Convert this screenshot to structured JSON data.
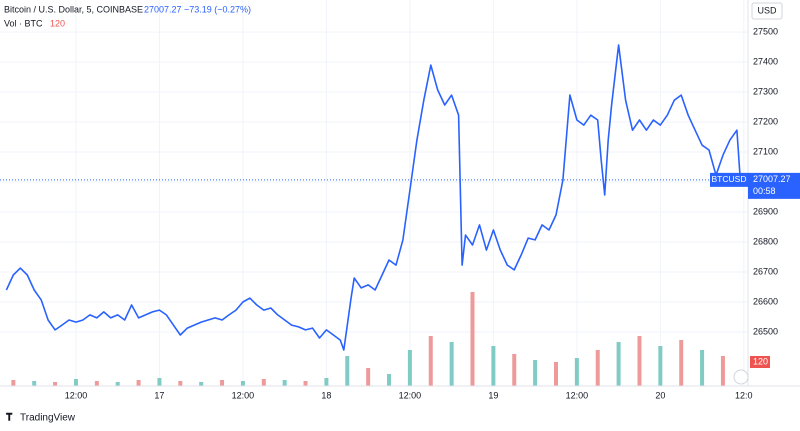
{
  "chart_data": {
    "type": "line",
    "title": "Bitcoin / U.S. Dollar, 5, COINBASE",
    "change": "−73.19 (−0.27%)",
    "volume_title": "Vol · BTC",
    "volume_last": 120,
    "currency": "USD",
    "symbol": "BTCUSD",
    "countdown": "00:58",
    "brand": "TradingView",
    "last_price": 27007.27,
    "color": "#2962ff",
    "grid": true,
    "x": [
      2,
      3,
      4,
      5,
      6,
      7,
      8,
      9,
      10,
      11,
      12,
      13,
      14,
      15,
      16,
      17,
      18,
      19,
      20,
      21,
      22,
      23,
      24,
      25,
      26,
      27,
      28,
      29,
      30,
      31,
      32,
      33,
      34,
      35,
      36,
      37,
      38,
      39,
      40,
      41,
      42,
      43,
      44,
      45,
      46,
      47,
      48,
      49,
      50,
      50.5,
      51,
      51.5,
      52,
      53,
      54,
      55,
      56,
      57,
      58,
      59,
      60,
      61,
      62,
      63,
      64,
      65,
      66,
      67,
      67.5,
      68,
      69,
      70,
      71,
      72,
      73,
      74,
      75,
      76,
      77,
      78,
      79,
      80,
      81,
      82,
      83,
      84,
      85,
      86,
      87,
      87.5,
      88,
      88.5,
      89,
      90,
      91,
      92,
      93,
      94,
      95,
      96,
      97,
      98,
      99,
      100,
      101,
      102,
      103,
      104,
      105,
      106,
      107,
      107.5
    ],
    "values": [
      26640,
      26690,
      26713,
      26690,
      26640,
      26607,
      26540,
      26507,
      26523,
      26540,
      26533,
      26540,
      26557,
      26547,
      26567,
      26547,
      26557,
      26540,
      26590,
      26547,
      26557,
      26567,
      26573,
      26557,
      26523,
      26490,
      26513,
      26523,
      26533,
      26540,
      26547,
      26540,
      26557,
      26573,
      26600,
      26613,
      26590,
      26573,
      26580,
      26557,
      26540,
      26523,
      26517,
      26507,
      26513,
      26480,
      26507,
      26490,
      26473,
      26440,
      26523,
      26607,
      26680,
      26647,
      26657,
      26640,
      26690,
      26740,
      26723,
      26807,
      26973,
      27140,
      27273,
      27390,
      27307,
      27257,
      27290,
      27223,
      26723,
      26823,
      26790,
      26857,
      26773,
      26840,
      26773,
      26723,
      26707,
      26757,
      26813,
      26807,
      26857,
      26840,
      26890,
      27007,
      27290,
      27207,
      27190,
      27223,
      27207,
      27073,
      26957,
      27140,
      27257,
      27457,
      27273,
      27173,
      27207,
      27173,
      27207,
      27190,
      27223,
      27273,
      27290,
      27223,
      27173,
      27123,
      27107,
      27023,
      27090,
      27140,
      27173,
      27007
    ],
    "xlim": [
      1.8,
      108.6
    ],
    "ylim": [
      26320,
      27607
    ],
    "yticks": [
      26500,
      26600,
      26700,
      26800,
      26900,
      27000,
      27100,
      27200,
      27300,
      27400,
      27500
    ],
    "xticks": [
      {
        "value": 12,
        "label": "12:00"
      },
      {
        "value": 24,
        "label": "17"
      },
      {
        "value": 36,
        "label": "12:00"
      },
      {
        "value": 48,
        "label": "18"
      },
      {
        "value": 60,
        "label": "12:00"
      },
      {
        "value": 72,
        "label": "19"
      },
      {
        "value": 84,
        "label": "12:00"
      },
      {
        "value": 96,
        "label": "20"
      },
      {
        "value": 108,
        "label": "12:0"
      }
    ],
    "volume": {
      "x": [
        3,
        6,
        9,
        12,
        15,
        18,
        21,
        24,
        27,
        30,
        33,
        36,
        39,
        42,
        45,
        48,
        51,
        54,
        57,
        60,
        63,
        66,
        69,
        72,
        75,
        78,
        81,
        84,
        87,
        90,
        93,
        96,
        99,
        102,
        105
      ],
      "values": [
        30,
        25,
        20,
        35,
        25,
        20,
        30,
        40,
        25,
        20,
        30,
        25,
        35,
        30,
        25,
        40,
        150,
        90,
        60,
        180,
        250,
        220,
        470,
        200,
        160,
        130,
        120,
        140,
        180,
        220,
        250,
        200,
        230,
        180,
        150
      ],
      "colors": [
        "#ef9a9a",
        "#80cbc4",
        "#ef9a9a",
        "#80cbc4",
        "#ef9a9a",
        "#80cbc4",
        "#ef9a9a",
        "#80cbc4",
        "#ef9a9a",
        "#80cbc4",
        "#ef9a9a",
        "#80cbc4",
        "#ef9a9a",
        "#80cbc4",
        "#ef9a9a",
        "#80cbc4",
        "#80cbc4",
        "#ef9a9a",
        "#80cbc4",
        "#80cbc4",
        "#ef9a9a",
        "#80cbc4",
        "#ef9a9a",
        "#80cbc4",
        "#ef9a9a",
        "#80cbc4",
        "#ef9a9a",
        "#80cbc4",
        "#ef9a9a",
        "#80cbc4",
        "#ef9a9a",
        "#80cbc4",
        "#ef9a9a",
        "#80cbc4",
        "#ef9a9a"
      ],
      "ylim": [
        0,
        600
      ]
    }
  }
}
